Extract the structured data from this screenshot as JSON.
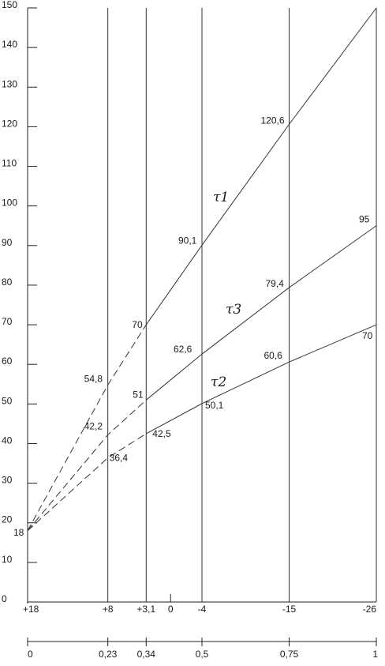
{
  "chart_data": {
    "type": "line",
    "ylim": [
      0,
      150
    ],
    "yticks": [
      0,
      10,
      20,
      30,
      40,
      50,
      60,
      70,
      80,
      90,
      100,
      110,
      120,
      130,
      140,
      150
    ],
    "x": [
      0,
      0.23,
      0.34,
      0.5,
      0.75,
      1
    ],
    "x_labels_top": [
      "+18",
      "+8",
      "+3,1",
      "0",
      "-4",
      "-15",
      "-26"
    ],
    "x_labels_bottom": [
      "0",
      "0,23",
      "0,34",
      "0,5",
      "0,75",
      "1"
    ],
    "start_value_label": "18",
    "series": [
      {
        "name": "τ1",
        "x": [
          0,
          0.23,
          0.34,
          0.5,
          0.75,
          1
        ],
        "values": [
          18,
          54.8,
          70,
          90.1,
          120.6,
          150
        ],
        "point_labels": [
          "",
          "54,8",
          "70",
          "90,1",
          "120,6",
          ""
        ],
        "dashed_until_x": 0.34
      },
      {
        "name": "τ3",
        "x": [
          0,
          0.23,
          0.34,
          0.5,
          0.75,
          1
        ],
        "values": [
          18,
          42.2,
          51,
          62.6,
          79.4,
          95
        ],
        "point_labels": [
          "",
          "42,2",
          "51",
          "62,6",
          "79,4",
          "95"
        ],
        "dashed_until_x": 0.34
      },
      {
        "name": "τ2",
        "x": [
          0,
          0.23,
          0.34,
          0.5,
          0.75,
          1
        ],
        "values": [
          18,
          36.4,
          42.5,
          50.1,
          60.6,
          70
        ],
        "point_labels": [
          "",
          "36,4",
          "42,5",
          "50,1",
          "60,6",
          "70"
        ],
        "dashed_until_x": 0.34
      }
    ]
  }
}
